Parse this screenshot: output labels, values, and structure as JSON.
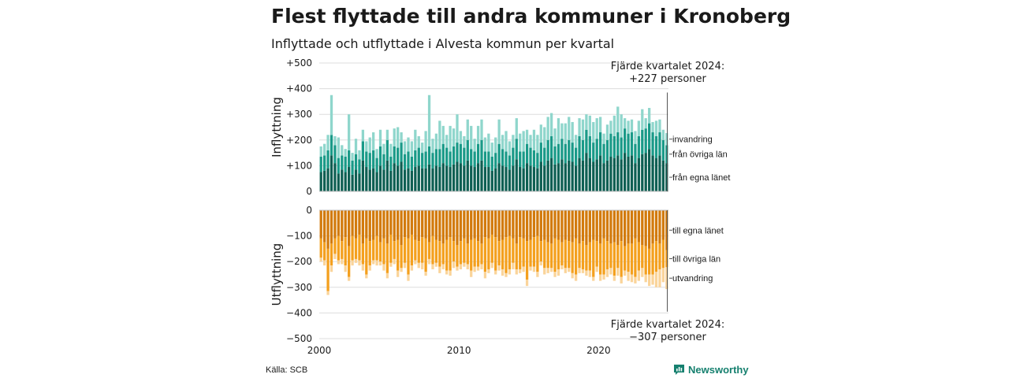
{
  "title": "Flest flyttade till andra kommuner i Kronoberg",
  "subtitle": "Inflyttade och utflyttade i Alvesta kommun per kvartal",
  "source": "Källa: SCB",
  "brand": "Newsworthy",
  "colors": {
    "invandring": "#8fd6cc",
    "fran_ovriga_lan": "#1a9a88",
    "fran_egna_lanet": "#0e5f53",
    "till_egna_lanet": "#d27a0c",
    "till_ovriga_lan": "#f4a01e",
    "utvandring": "#fad49a",
    "brand": "#16806f"
  },
  "annotations": {
    "top": [
      "Fjärde kvartalet 2024:",
      "+227 personer"
    ],
    "bottom": [
      "Fjärde kvartalet 2024:",
      "−307 personer"
    ]
  },
  "chart_data": [
    {
      "type": "bar",
      "stacked": true,
      "ylabel": "Inflyttning",
      "ylim": [
        0,
        500
      ],
      "yticks": [
        "0",
        "+100",
        "+200",
        "+300",
        "+400",
        "+500"
      ],
      "xticks": [
        "2000",
        "2010",
        "2020"
      ],
      "x_start": "2000 Q1",
      "x_end": "2024 Q4",
      "grid": true,
      "series": [
        {
          "name": "från egna länet",
          "values": [
            75,
            80,
            90,
            140,
            110,
            70,
            85,
            75,
            95,
            65,
            85,
            70,
            120,
            95,
            85,
            90,
            75,
            100,
            85,
            120,
            80,
            110,
            100,
            115,
            85,
            90,
            80,
            95,
            100,
            90,
            90,
            105,
            90,
            100,
            95,
            110,
            100,
            95,
            105,
            115,
            110,
            100,
            120,
            100,
            95,
            110,
            120,
            95,
            95,
            80,
            90,
            110,
            100,
            95,
            85,
            100,
            125,
            95,
            90,
            110,
            100,
            95,
            90,
            115,
            100,
            120,
            130,
            105,
            110,
            125,
            110,
            120,
            115,
            100,
            130,
            120,
            150,
            130,
            115,
            125,
            140,
            110,
            120,
            135,
            130,
            140,
            125,
            150,
            135,
            140,
            110,
            130,
            145,
            150,
            165,
            140,
            130,
            140,
            120,
            110
          ]
        },
        {
          "name": "från övriga län",
          "values": [
            60,
            60,
            70,
            80,
            70,
            60,
            55,
            60,
            65,
            55,
            60,
            55,
            75,
            60,
            65,
            70,
            55,
            75,
            60,
            80,
            55,
            65,
            70,
            75,
            60,
            65,
            55,
            65,
            70,
            60,
            65,
            70,
            60,
            65,
            70,
            75,
            70,
            60,
            70,
            75,
            75,
            70,
            80,
            65,
            60,
            75,
            80,
            60,
            60,
            55,
            60,
            75,
            65,
            60,
            55,
            70,
            80,
            60,
            65,
            75,
            70,
            65,
            60,
            75,
            70,
            80,
            85,
            70,
            75,
            80,
            75,
            80,
            75,
            70,
            85,
            80,
            90,
            85,
            75,
            80,
            90,
            75,
            80,
            90,
            85,
            90,
            85,
            95,
            90,
            90,
            75,
            85,
            95,
            95,
            100,
            90,
            85,
            90,
            80,
            70
          ]
        },
        {
          "name": "invandring",
          "values": [
            40,
            45,
            60,
            155,
            35,
            80,
            40,
            30,
            140,
            30,
            60,
            35,
            45,
            40,
            60,
            70,
            35,
            65,
            40,
            40,
            50,
            70,
            80,
            40,
            50,
            55,
            60,
            80,
            45,
            40,
            80,
            200,
            55,
            60,
            110,
            70,
            50,
            100,
            70,
            110,
            50,
            45,
            80,
            90,
            50,
            70,
            80,
            55,
            70,
            55,
            60,
            95,
            55,
            80,
            55,
            50,
            80,
            70,
            80,
            55,
            50,
            80,
            70,
            70,
            80,
            90,
            90,
            70,
            100,
            60,
            80,
            90,
            80,
            50,
            70,
            80,
            60,
            80,
            80,
            80,
            60,
            40,
            60,
            50,
            80,
            100,
            90,
            40,
            50,
            50,
            50,
            60,
            80,
            40,
            60,
            40,
            60,
            50,
            40,
            47
          ]
        }
      ]
    },
    {
      "type": "bar",
      "stacked": true,
      "ylabel": "Utflyttning",
      "ylim": [
        -500,
        0
      ],
      "yticks": [
        "0",
        "−100",
        "−200",
        "−300",
        "−400",
        "−500"
      ],
      "xticks": [
        "2000",
        "2010",
        "2020"
      ],
      "x_start": "2000 Q1",
      "x_end": "2024 Q4",
      "grid": true,
      "series": [
        {
          "name": "till egna länet",
          "values": [
            -110,
            -125,
            -150,
            -130,
            -110,
            -100,
            -120,
            -105,
            -140,
            -100,
            -110,
            -95,
            -130,
            -110,
            -120,
            -115,
            -100,
            -125,
            -110,
            -130,
            -95,
            -120,
            -115,
            -135,
            -105,
            -110,
            -95,
            -115,
            -120,
            -105,
            -110,
            -125,
            -100,
            -115,
            -120,
            -130,
            -115,
            -105,
            -120,
            -135,
            -120,
            -110,
            -130,
            -115,
            -110,
            -120,
            -130,
            -105,
            -110,
            -95,
            -105,
            -120,
            -115,
            -105,
            -100,
            -110,
            -130,
            -105,
            -110,
            -120,
            -115,
            -105,
            -100,
            -120,
            -115,
            -125,
            -130,
            -110,
            -115,
            -125,
            -115,
            -120,
            -125,
            -110,
            -130,
            -120,
            -135,
            -125,
            -115,
            -120,
            -130,
            -110,
            -120,
            -130,
            -125,
            -135,
            -120,
            -140,
            -130,
            -130,
            -110,
            -125,
            -135,
            -140,
            -150,
            -130,
            -120,
            -130,
            -115,
            -155
          ]
        },
        {
          "name": "till övriga län",
          "values": [
            -75,
            -70,
            -165,
            -85,
            -60,
            -95,
            -70,
            -110,
            -120,
            -95,
            -80,
            -100,
            -80,
            -140,
            -95,
            -80,
            -95,
            -75,
            -100,
            -115,
            -110,
            -70,
            -120,
            -90,
            -100,
            -140,
            -120,
            -80,
            -85,
            -100,
            -130,
            -65,
            -110,
            -90,
            -100,
            -80,
            -120,
            -130,
            -80,
            -85,
            -90,
            -95,
            -80,
            -120,
            -110,
            -100,
            -80,
            -135,
            -120,
            -110,
            -130,
            -95,
            -115,
            -140,
            -130,
            -95,
            -100,
            -125,
            -110,
            -150,
            -105,
            -115,
            -140,
            -80,
            -110,
            -100,
            -95,
            -130,
            -115,
            -90,
            -110,
            -105,
            -120,
            -140,
            -95,
            -110,
            -100,
            -110,
            -145,
            -100,
            -120,
            -140,
            -110,
            -95,
            -130,
            -90,
            -140,
            -95,
            -110,
            -120,
            -150,
            -110,
            -90,
            -110,
            -100,
            -120,
            -120,
            -100,
            -110,
            -67
          ]
        },
        {
          "name": "utvandring",
          "values": [
            -15,
            -20,
            -15,
            -25,
            -20,
            -15,
            -20,
            -25,
            -15,
            -20,
            -15,
            -20,
            -25,
            -15,
            -20,
            -15,
            -20,
            -15,
            -25,
            -20,
            -15,
            -20,
            -25,
            -15,
            -20,
            -25,
            -20,
            -15,
            -20,
            -25,
            -15,
            -20,
            -20,
            -15,
            -25,
            -20,
            -15,
            -20,
            -25,
            -15,
            -20,
            -15,
            -20,
            -25,
            -20,
            -15,
            -20,
            -25,
            -15,
            -20,
            -15,
            -20,
            -25,
            -15,
            -20,
            -25,
            -20,
            -15,
            -20,
            -25,
            -15,
            -20,
            -20,
            -15,
            -25,
            -20,
            -15,
            -20,
            -25,
            -15,
            -20,
            -15,
            -20,
            -25,
            -20,
            -15,
            -20,
            -25,
            -15,
            -20,
            -25,
            -20,
            -30,
            -25,
            -20,
            -30,
            -25,
            -20,
            -35,
            -30,
            -25,
            -40,
            -35,
            -30,
            -45,
            -40,
            -60,
            -70,
            -55,
            -85
          ]
        }
      ]
    }
  ]
}
